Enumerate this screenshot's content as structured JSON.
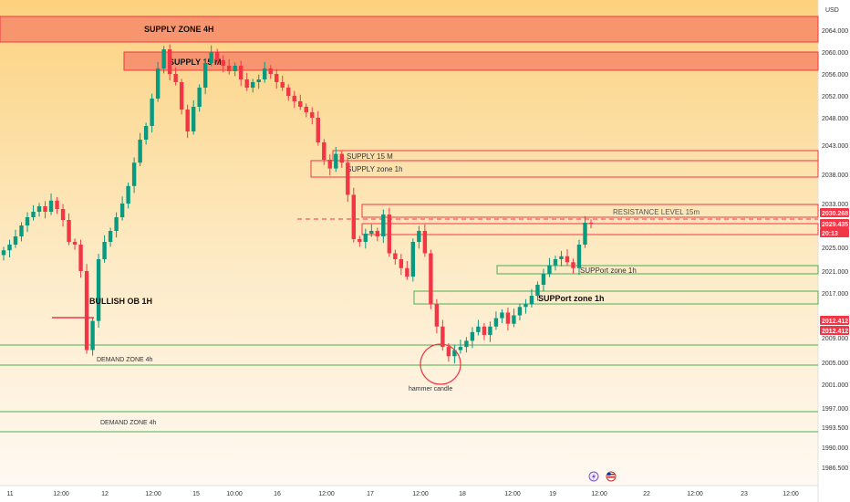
{
  "chart_data": {
    "type": "candlestick",
    "currency": "USD",
    "y_axis": {
      "range": [
        1986,
        2067
      ],
      "ticks": [
        "2064.000",
        "2060.000",
        "2056.000",
        "2052.000",
        "2048.000",
        "2043.000",
        "2038.000",
        "2033.000",
        "2025.000",
        "2021.000",
        "2017.000",
        "2009.000",
        "2005.000",
        "2001.000",
        "1997.000",
        "1993.500",
        "1990.000",
        "1986.500"
      ]
    },
    "x_axis": {
      "ticks": [
        "11",
        "12:00",
        "12",
        "12:00",
        "15",
        "10:00",
        "16",
        "12:00",
        "17",
        "12:00",
        "18",
        "12:00",
        "19",
        "12:00",
        "22",
        "12:00",
        "23",
        "12:00"
      ]
    },
    "price_labels": [
      {
        "value": "2030.268",
        "bg": "#f23645"
      },
      {
        "value": "2029.435",
        "bg": "#f23645"
      },
      {
        "value": "20:13",
        "bg": "#f23645"
      },
      {
        "value": "2012.412",
        "bg": "#f23645"
      },
      {
        "value": "2012.412",
        "bg": "#f23645"
      }
    ],
    "zones": [
      {
        "label": "SUPPLY ZONE 4H",
        "kind": "supply",
        "filled": true
      },
      {
        "label": "SUPPLY 15 M",
        "kind": "supply",
        "filled": true
      },
      {
        "label": "SUPPLY 15 M",
        "kind": "supply",
        "filled": false
      },
      {
        "label": "SUPPLY zone 1h",
        "kind": "supply",
        "filled": false
      },
      {
        "label": "RESISTANCE LEVEL 15m",
        "kind": "resistance",
        "filled": false
      },
      {
        "label": "SUPPort zone 1h",
        "kind": "support",
        "filled": false
      },
      {
        "label": "SUPPort zone 1h",
        "kind": "support",
        "filled": false
      },
      {
        "label": "DEMAND ZONE 4h",
        "kind": "demand",
        "filled": false
      },
      {
        "label": "DEMAND ZONE 4h",
        "kind": "demand",
        "filled": false
      }
    ],
    "annotations": [
      "BULLISH OB 1H",
      "hammer candle"
    ],
    "closes": [
      2024.5,
      2025.5,
      2027,
      2029,
      2030.5,
      2031.5,
      2032.5,
      2031.5,
      2033.5,
      2032,
      2030,
      2026,
      2025.5,
      2021,
      2007,
      2012,
      2023,
      2026,
      2028,
      2030.5,
      2033,
      2036,
      2040,
      2044,
      2046.5,
      2051.5,
      2057,
      2060.5,
      2056,
      2054.5,
      2049.5,
      2045.5,
      2050,
      2053.5,
      2058,
      2060,
      2058.5,
      2057.5,
      2056.5,
      2057.5,
      2055,
      2053.5,
      2054.5,
      2055,
      2057,
      2056,
      2054.5,
      2053.5,
      2052,
      2051,
      2050,
      2049,
      2048,
      2043.5,
      2040.5,
      2039,
      2041.5,
      2040,
      2034.5,
      2026.5,
      2026,
      2027.5,
      2028,
      2027,
      2031,
      2024,
      2023,
      2021.5,
      2020,
      2026,
      2028,
      2024,
      2015,
      2011,
      2007.5,
      2006,
      2007,
      2007.5,
      2008.5,
      2010,
      2011,
      2009.5,
      2011,
      2012.5,
      2013.5,
      2011.5,
      2013,
      2014.5,
      2015,
      2016.5,
      2018.5,
      2020.5,
      2022,
      2023,
      2023.5,
      2022.5,
      2021.5,
      2025.5,
      2029.5,
      2029.4
    ],
    "colors": {
      "up": "#089981",
      "down": "#f23645",
      "supply": "#f23645",
      "support": "#4caf50",
      "bg_top": "#fcd27f",
      "bg_bottom": "#fff8f0"
    }
  }
}
